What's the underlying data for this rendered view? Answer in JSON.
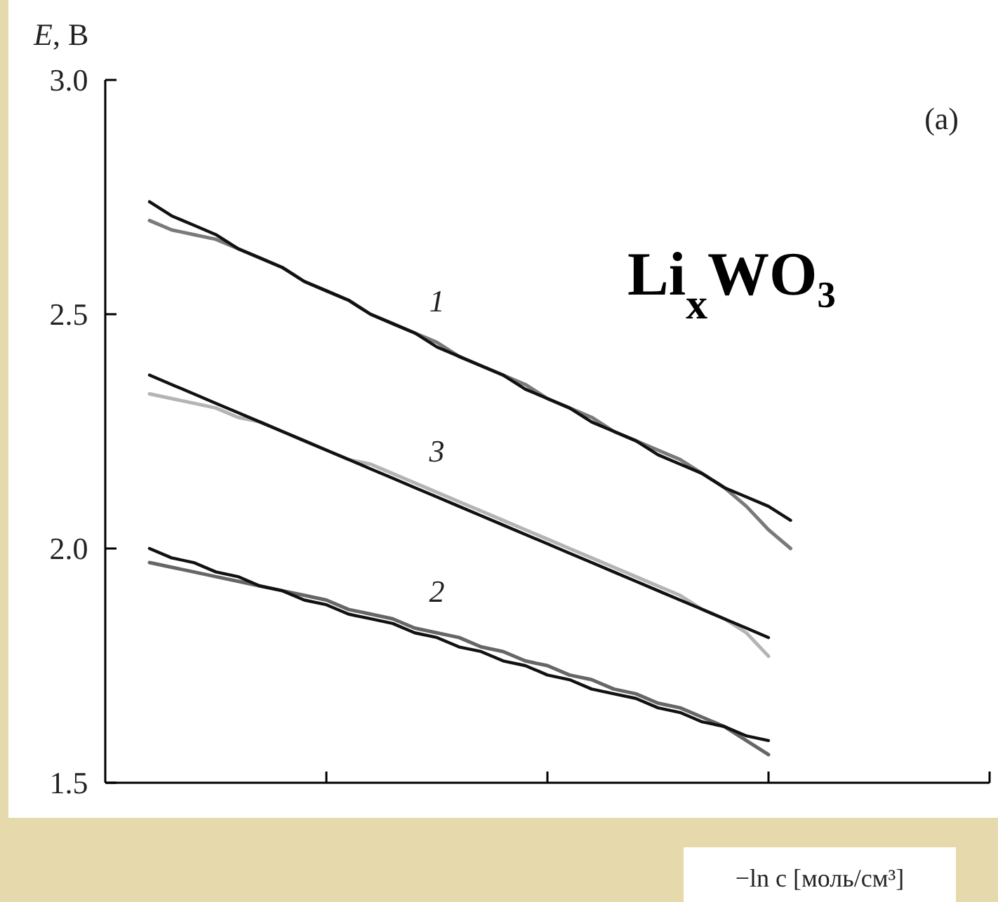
{
  "chart_data": {
    "type": "line",
    "ylabel": "E, В",
    "xlabel": "−ln c [моль/см³]",
    "annotations": [
      "(a)",
      "Li$_{x}$WO₃"
    ],
    "categories": [
      null,
      null,
      null,
      null,
      null,
      null,
      null,
      null,
      null,
      null,
      null,
      null,
      null,
      null,
      null,
      null,
      null,
      null,
      null,
      null,
      null,
      null,
      null,
      null,
      null,
      null,
      null,
      null,
      null,
      null,
      null,
      null,
      null,
      null,
      null,
      null,
      null,
      null,
      null,
      null,
      null
    ],
    "ylim": [
      1.5,
      3.0
    ],
    "yticks": [
      {
        "value": 1.5,
        "label": "1.5"
      },
      {
        "value": 2.0,
        "label": "2.0"
      },
      {
        "value": 2.5,
        "label": "2.5"
      },
      {
        "value": 3.0,
        "label": "3.0"
      }
    ],
    "tick_labels": "y",
    "marker": "none",
    "line_style": "solid",
    "series": [
      {
        "name": "1",
        "color": "#7a7a7a",
        "values": [
          null,
          null,
          2.7,
          2.68,
          2.67,
          2.66,
          2.64,
          2.62,
          2.6,
          2.57,
          2.55,
          2.53,
          2.5,
          2.48,
          2.46,
          2.44,
          2.41,
          2.39,
          2.37,
          2.35,
          2.32,
          2.3,
          2.28,
          2.25,
          2.23,
          2.21,
          2.19,
          2.16,
          2.13,
          2.09,
          2.04,
          2.0,
          null,
          null,
          null,
          null,
          null,
          null,
          null,
          null,
          null
        ]
      },
      {
        "name": "3",
        "color": "#b4b4b4",
        "values": [
          null,
          null,
          2.33,
          2.32,
          2.31,
          2.3,
          2.28,
          2.27,
          2.25,
          2.23,
          2.21,
          2.19,
          2.18,
          2.16,
          2.14,
          2.12,
          2.1,
          2.08,
          2.06,
          2.04,
          2.02,
          2.0,
          1.98,
          1.96,
          1.94,
          1.92,
          1.9,
          1.87,
          1.85,
          1.82,
          1.77,
          null,
          null,
          null,
          null,
          null,
          null,
          null,
          null,
          null,
          null
        ]
      },
      {
        "name": "2",
        "color": "#666666",
        "values": [
          null,
          null,
          1.97,
          1.96,
          1.95,
          1.94,
          1.93,
          1.92,
          1.91,
          1.9,
          1.89,
          1.87,
          1.86,
          1.85,
          1.83,
          1.82,
          1.81,
          1.79,
          1.78,
          1.76,
          1.75,
          1.73,
          1.72,
          1.7,
          1.69,
          1.67,
          1.66,
          1.64,
          1.62,
          1.59,
          1.56,
          null,
          null,
          null,
          null,
          null,
          null,
          null,
          null,
          null,
          null
        ]
      },
      {
        "color": "#111111",
        "values": [
          null,
          null,
          2.74,
          2.71,
          2.69,
          2.67,
          2.64,
          2.62,
          2.6,
          2.57,
          2.55,
          2.53,
          2.5,
          2.48,
          2.46,
          2.43,
          2.41,
          2.39,
          2.37,
          2.34,
          2.32,
          2.3,
          2.27,
          2.25,
          2.23,
          2.2,
          2.18,
          2.16,
          2.13,
          2.11,
          2.09,
          2.06,
          null,
          null,
          null,
          null,
          null,
          null,
          null,
          null,
          null
        ]
      },
      {
        "color": "#111111",
        "values": [
          null,
          null,
          2.37,
          2.35,
          2.33,
          2.31,
          2.29,
          2.27,
          2.25,
          2.23,
          2.21,
          2.19,
          2.17,
          2.15,
          2.13,
          2.11,
          2.09,
          2.07,
          2.05,
          2.03,
          2.01,
          1.99,
          1.97,
          1.95,
          1.93,
          1.91,
          1.89,
          1.87,
          1.85,
          1.83,
          1.81,
          null,
          null,
          null,
          null,
          null,
          null,
          null,
          null,
          null,
          null
        ]
      },
      {
        "color": "#111111",
        "values": [
          null,
          null,
          2.0,
          1.98,
          1.97,
          1.95,
          1.94,
          1.92,
          1.91,
          1.89,
          1.88,
          1.86,
          1.85,
          1.84,
          1.82,
          1.81,
          1.79,
          1.78,
          1.76,
          1.75,
          1.73,
          1.72,
          1.7,
          1.69,
          1.68,
          1.66,
          1.65,
          1.63,
          1.62,
          1.6,
          1.59,
          null,
          null,
          null,
          null,
          null,
          null,
          null,
          null,
          null,
          null
        ]
      }
    ]
  }
}
